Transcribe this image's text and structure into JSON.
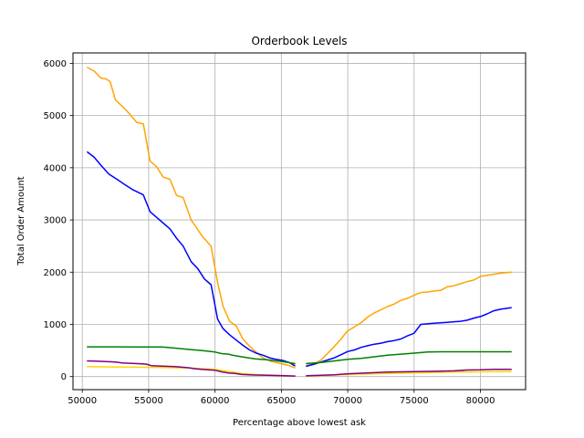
{
  "chart_data": {
    "type": "line",
    "title": "Orderbook Levels",
    "xlabel": "Percentage above lowest ask",
    "ylabel": "Total Order Amount",
    "xlim": [
      49300,
      83400
    ],
    "ylim": [
      -250,
      6200
    ],
    "xticks": [
      50000,
      55000,
      60000,
      65000,
      70000,
      75000,
      80000
    ],
    "yticks": [
      0,
      1000,
      2000,
      3000,
      4000,
      5000,
      6000
    ],
    "grid": true,
    "series": [
      {
        "color": "#ffd700",
        "segments": [
          {
            "x": [
              50400,
              52000,
              54000,
              56000,
              58000,
              60000,
              61000,
              62000,
              63000,
              64000,
              65000,
              66000
            ],
            "y": [
              190,
              185,
              180,
              175,
              165,
              140,
              100,
              60,
              40,
              25,
              15,
              8
            ]
          },
          {
            "x": [
              66900,
              68000,
              70000,
              72000,
              74000,
              76000,
              78000,
              80000,
              82300
            ],
            "y": [
              10,
              20,
              40,
              55,
              65,
              75,
              85,
              90,
              95
            ]
          }
        ]
      },
      {
        "color": "#ffa500",
        "segments": [
          {
            "x": [
              50400,
              50900,
              51400,
              51800,
              52100,
              52500,
              53000,
              53500,
              54100,
              54600,
              55100,
              55600,
              56100,
              56600,
              57100,
              57600,
              58200,
              59000,
              59700,
              60200,
              60600,
              61100,
              61600,
              62100,
              62600,
              63100,
              63600,
              64100,
              64600,
              65100,
              65600,
              66000
            ],
            "y": [
              5920,
              5850,
              5720,
              5700,
              5650,
              5300,
              5180,
              5050,
              4870,
              4840,
              4130,
              4020,
              3820,
              3780,
              3470,
              3430,
              3000,
              2700,
              2500,
              1800,
              1350,
              1060,
              970,
              720,
              580,
              470,
              360,
              300,
              270,
              240,
              210,
              170
            ]
          },
          {
            "x": [
              66900,
              67500,
              68000,
              68500,
              69000,
              69500,
              70000,
              70500,
              71000,
              71500,
              72000,
              72500,
              73000,
              73500,
              74000,
              74500,
              75000,
              75500,
              76000,
              76500,
              77000,
              77500,
              78000,
              78500,
              79000,
              79500,
              80000,
              80500,
              81000,
              81500,
              82300
            ],
            "y": [
              210,
              250,
              320,
              450,
              580,
              720,
              880,
              950,
              1030,
              1140,
              1220,
              1280,
              1340,
              1390,
              1460,
              1500,
              1560,
              1610,
              1620,
              1640,
              1650,
              1720,
              1740,
              1780,
              1820,
              1850,
              1920,
              1940,
              1960,
              1980,
              2000
            ]
          }
        ]
      },
      {
        "color": "#0000ff",
        "segments": [
          {
            "x": [
              50400,
              50900,
              51400,
              52000,
              52600,
              53200,
              53800,
              54200,
              54600,
              55100,
              55600,
              56100,
              56600,
              57100,
              57600,
              58200,
              58700,
              59200,
              59700,
              60200,
              60600,
              61100,
              61600,
              62100,
              62600,
              63100,
              63600,
              64100,
              64600,
              65100,
              65600,
              66000
            ],
            "y": [
              4300,
              4200,
              4050,
              3880,
              3780,
              3680,
              3580,
              3530,
              3480,
              3160,
              3050,
              2940,
              2830,
              2650,
              2500,
              2200,
              2070,
              1870,
              1760,
              1100,
              920,
              800,
              700,
              600,
              510,
              450,
              410,
              360,
              330,
              310,
              270,
              210
            ]
          },
          {
            "x": [
              66900,
              67500,
              68000,
              68500,
              69000,
              69500,
              70000,
              70500,
              71000,
              71500,
              72000,
              72500,
              73000,
              73500,
              74000,
              74500,
              75000,
              75500,
              76000,
              76500,
              77000,
              77500,
              78000,
              78500,
              79000,
              79500,
              80000,
              80500,
              81000,
              81500,
              82300
            ],
            "y": [
              200,
              240,
              280,
              320,
              360,
              420,
              480,
              510,
              560,
              590,
              620,
              640,
              670,
              690,
              720,
              780,
              830,
              1000,
              1010,
              1020,
              1030,
              1040,
              1050,
              1060,
              1080,
              1120,
              1150,
              1200,
              1260,
              1290,
              1320
            ]
          }
        ]
      },
      {
        "color": "#008000",
        "segments": [
          {
            "x": [
              50400,
              52000,
              54000,
              56000,
              57000,
              58000,
              59000,
              60000,
              60500,
              61000,
              61500,
              62000,
              63000,
              64000,
              65000,
              66000
            ],
            "y": [
              570,
              570,
              568,
              566,
              545,
              520,
              500,
              470,
              440,
              430,
              400,
              380,
              340,
              320,
              290,
              250
            ]
          },
          {
            "x": [
              66900,
              68000,
              69000,
              70000,
              71000,
              72000,
              73000,
              74000,
              75000,
              76000,
              77000,
              78000,
              79000,
              80000,
              81000,
              82300
            ],
            "y": [
              250,
              270,
              300,
              330,
              350,
              380,
              410,
              430,
              450,
              470,
              475,
              475,
              475,
              475,
              475,
              475
            ]
          }
        ]
      },
      {
        "color": "#800080",
        "segments": [
          {
            "x": [
              50400,
              51000,
              52000,
              52500,
              53000,
              54000,
              54800,
              55200,
              56000,
              57000,
              58000,
              58500,
              59000,
              60000,
              60500,
              61000,
              61500,
              62000,
              63000,
              64000,
              65000,
              66000
            ],
            "y": [
              300,
              295,
              285,
              280,
              260,
              250,
              240,
              210,
              200,
              190,
              170,
              150,
              140,
              120,
              90,
              70,
              60,
              40,
              30,
              25,
              20,
              10
            ]
          },
          {
            "x": [
              66900,
              68000,
              69000,
              70000,
              71000,
              72000,
              73000,
              74000,
              75000,
              76000,
              77000,
              78000,
              79000,
              80000,
              81000,
              82300
            ],
            "y": [
              15,
              25,
              35,
              55,
              65,
              75,
              85,
              90,
              95,
              100,
              105,
              110,
              125,
              130,
              140,
              140
            ]
          }
        ]
      }
    ]
  }
}
